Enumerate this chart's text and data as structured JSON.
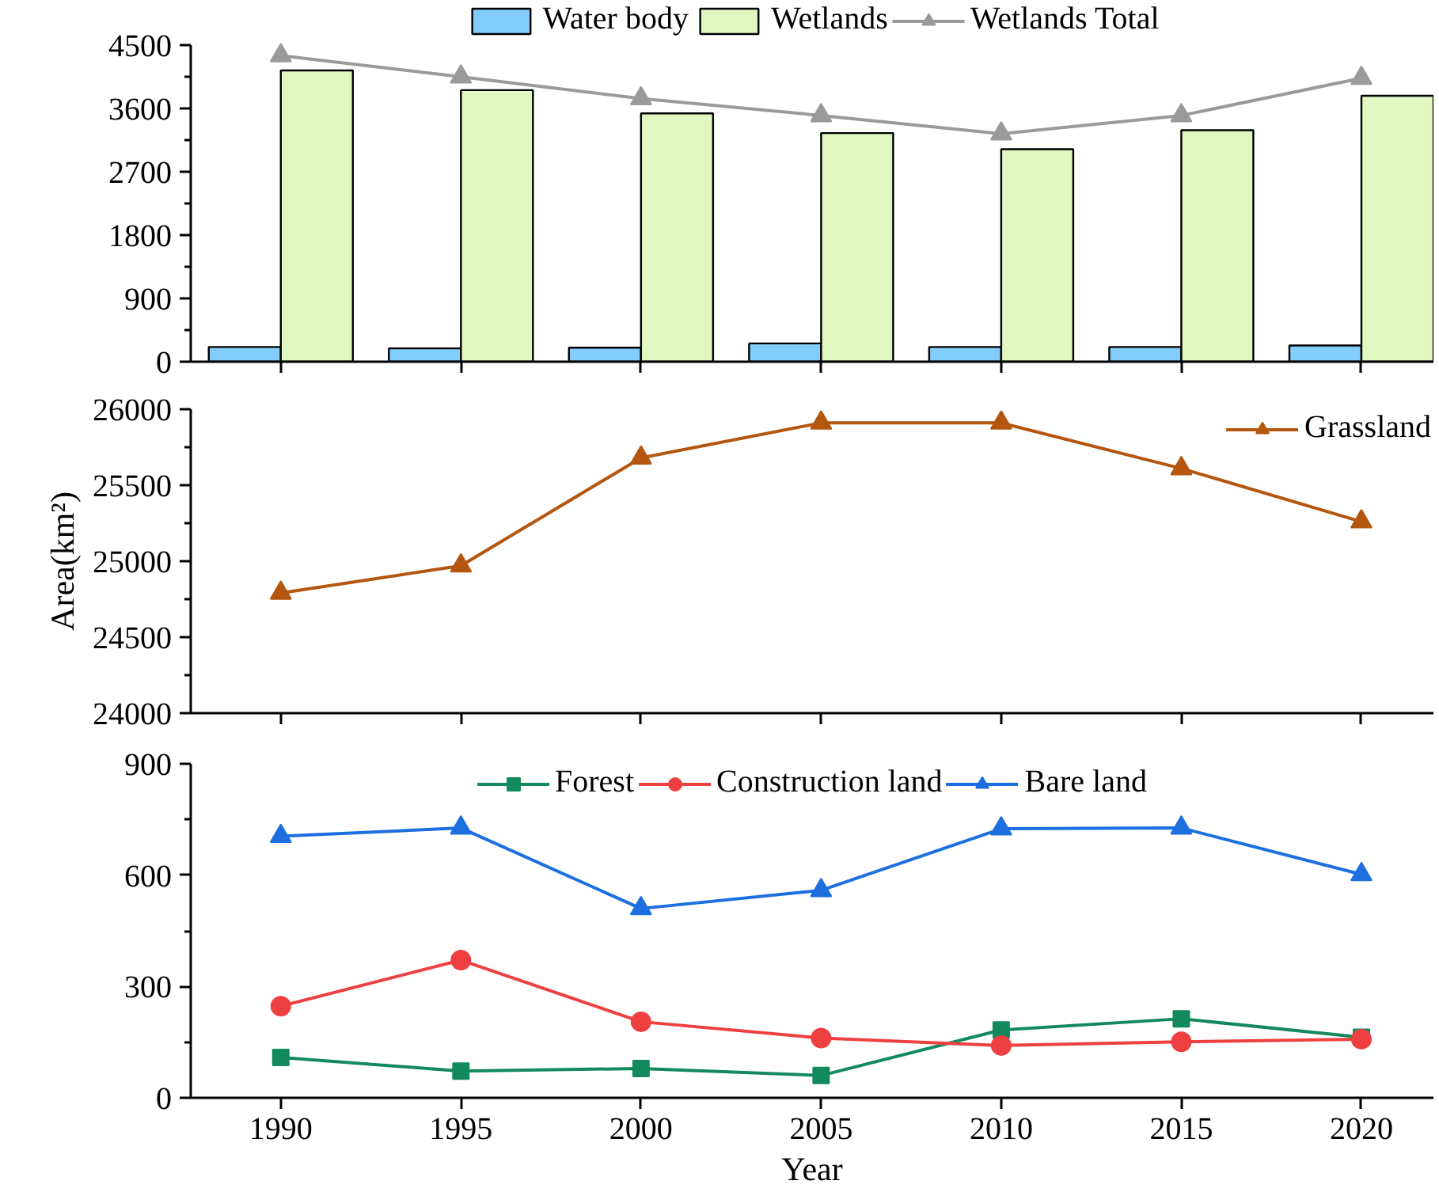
{
  "chart_data": [
    {
      "type": "bar",
      "x": [
        1990,
        1995,
        2000,
        2005,
        2010,
        2015,
        2020
      ],
      "xlim": [
        1987.5,
        2022
      ],
      "xticks": [
        1990,
        1995,
        2000,
        2005,
        2010,
        2015,
        2020
      ],
      "ylim": [
        0,
        4500
      ],
      "yticks": [
        0,
        {
          "value": 450,
          "label": null
        },
        900,
        {
          "value": 1350,
          "label": null
        },
        1800,
        {
          "value": 2250,
          "label": null
        },
        2700,
        {
          "value": 3150,
          "label": null
        },
        3600,
        {
          "value": 4050,
          "label": null
        },
        4500
      ],
      "tick_labels": "y",
      "legend": "top",
      "grid": false,
      "series": [
        {
          "name": "Water body",
          "type": "bar",
          "color": "#82cdfb",
          "values": [
            210,
            190,
            200,
            260,
            210,
            210,
            230
          ]
        },
        {
          "name": "Wetlands",
          "type": "bar",
          "color": "#e0f7c2",
          "values": [
            4140,
            3860,
            3530,
            3250,
            3020,
            3290,
            3780
          ]
        },
        {
          "name": "Wetlands Total",
          "type": "line",
          "marker": "triangle",
          "color": "#9a9a9a",
          "values": [
            4350,
            4050,
            3740,
            3500,
            3240,
            3500,
            4030
          ]
        }
      ]
    },
    {
      "type": "line",
      "x": [
        1990,
        1995,
        2000,
        2005,
        2010,
        2015,
        2020
      ],
      "xlim": [
        1987.5,
        2022
      ],
      "xticks": [
        1990,
        1995,
        2000,
        2005,
        2010,
        2015,
        2020
      ],
      "ylim": [
        24000,
        26000
      ],
      "yticks": [
        24000,
        {
          "value": 24250,
          "label": null
        },
        24500,
        {
          "value": 24750,
          "label": null
        },
        25000,
        {
          "value": 25250,
          "label": null
        },
        25500,
        {
          "value": 25750,
          "label": null
        },
        26000
      ],
      "ylabel": "Area(km²)",
      "tick_labels": "y",
      "legend": "top right",
      "grid": false,
      "series": [
        {
          "name": "Grassland",
          "marker": "triangle",
          "color": "#b4560f",
          "values": [
            24790,
            24970,
            25680,
            25910,
            25910,
            25610,
            25260
          ]
        }
      ]
    },
    {
      "type": "line",
      "x": [
        1990,
        1995,
        2000,
        2005,
        2010,
        2015,
        2020
      ],
      "xlim": [
        1987.5,
        2022
      ],
      "xticks": [
        1990,
        1995,
        2000,
        2005,
        2010,
        2015,
        2020
      ],
      "ylim": [
        0,
        900
      ],
      "yticks": [
        0,
        {
          "value": 150,
          "label": null
        },
        300,
        {
          "value": 450,
          "label": null
        },
        600,
        {
          "value": 750,
          "label": null
        },
        900
      ],
      "xlabel": "Year",
      "legend": "top",
      "grid": false,
      "series": [
        {
          "name": "Forest",
          "marker": "square",
          "color": "#138a5e",
          "values": [
            109,
            72,
            79,
            60,
            183,
            213,
            163
          ]
        },
        {
          "name": "Construction land",
          "marker": "circle",
          "color": "#ee4040",
          "values": [
            247,
            371,
            205,
            161,
            141,
            151,
            158
          ]
        },
        {
          "name": "Bare land",
          "marker": "triangle",
          "color": "#1d6fe0",
          "values": [
            705,
            727,
            510,
            559,
            725,
            727,
            602
          ]
        }
      ]
    }
  ]
}
